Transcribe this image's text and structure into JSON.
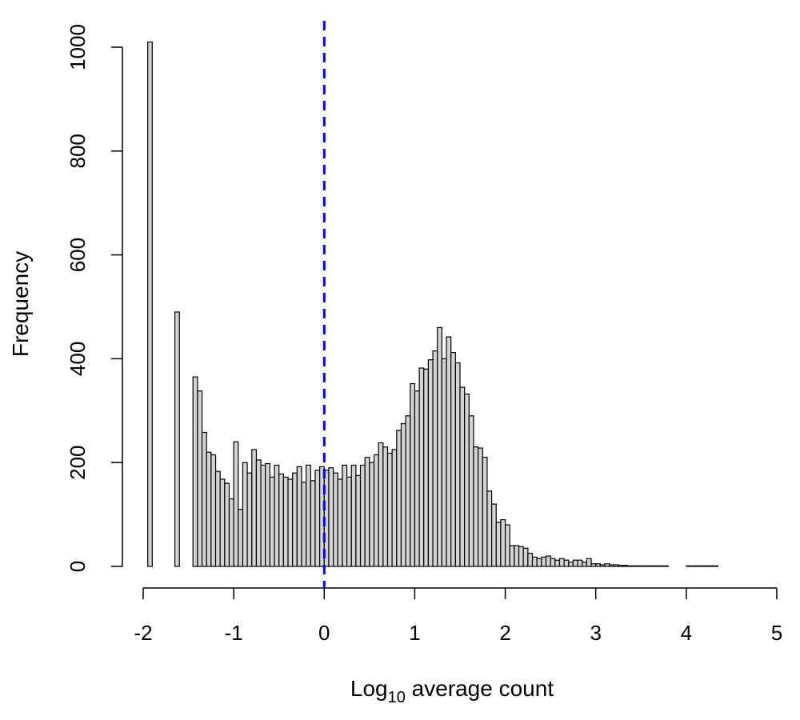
{
  "chart_data": {
    "type": "bar",
    "subtype": "histogram",
    "title": "",
    "xlabel": {
      "base": "Log",
      "subscript": "10",
      "rest": " average count"
    },
    "ylabel": "Frequency",
    "xlim": [
      -2,
      5
    ],
    "ylim": [
      0,
      1000
    ],
    "x_ticks": [
      -2,
      -1,
      0,
      1,
      2,
      3,
      4,
      5
    ],
    "x_tick_labels": [
      "-2",
      "-1",
      "0",
      "1",
      "2",
      "3",
      "4",
      "5"
    ],
    "y_ticks": [
      0,
      200,
      400,
      600,
      800,
      1000
    ],
    "y_tick_labels": [
      "0",
      "200",
      "400",
      "600",
      "800",
      "1000"
    ],
    "bin_start": -2.0,
    "bin_width": 0.05,
    "values": [
      0,
      1010,
      0,
      0,
      0,
      0,
      0,
      490,
      0,
      0,
      0,
      365,
      338,
      258,
      220,
      215,
      183,
      168,
      160,
      130,
      240,
      110,
      200,
      180,
      225,
      205,
      195,
      198,
      172,
      195,
      178,
      172,
      168,
      180,
      192,
      162,
      195,
      165,
      185,
      192,
      185,
      190,
      180,
      168,
      195,
      172,
      195,
      175,
      195,
      210,
      200,
      215,
      238,
      230,
      218,
      225,
      262,
      275,
      290,
      352,
      338,
      382,
      380,
      398,
      415,
      460,
      400,
      442,
      412,
      392,
      345,
      332,
      290,
      230,
      228,
      210,
      145,
      120,
      85,
      90,
      80,
      40,
      40,
      38,
      35,
      25,
      18,
      15,
      18,
      20,
      15,
      12,
      15,
      12,
      8,
      12,
      12,
      8,
      15,
      5,
      5,
      3,
      5,
      3,
      3,
      2,
      2,
      1,
      1,
      1,
      1,
      1,
      1,
      1,
      1,
      1,
      0,
      0,
      0,
      0,
      1,
      1,
      1,
      1,
      1,
      1,
      1
    ],
    "bar_fill": "#d3d3d3",
    "bar_stroke": "#000000",
    "reference_line": {
      "x": 0,
      "color": "#0000ee",
      "style": "dashed"
    },
    "grid": false,
    "legend": "none"
  }
}
